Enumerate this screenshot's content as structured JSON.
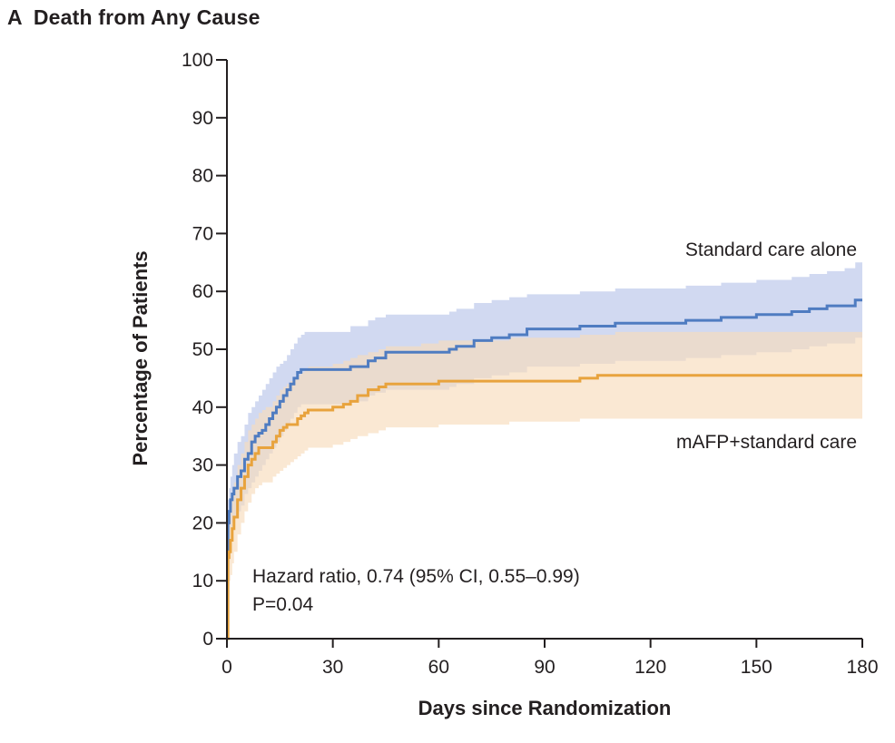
{
  "chart_data": {
    "type": "line",
    "panel_letter": "A",
    "title": "Death from Any Cause",
    "xlabel": "Days since Randomization",
    "ylabel": "Percentage of Patients",
    "xlim": [
      0,
      180
    ],
    "ylim": [
      0,
      100
    ],
    "x_ticks": [
      0,
      30,
      60,
      90,
      120,
      150,
      180
    ],
    "y_ticks": [
      0,
      10,
      20,
      30,
      40,
      50,
      60,
      70,
      80,
      90,
      100
    ],
    "grid": false,
    "annotations": [
      "Hazard ratio, 0.74 (95% CI, 0.55–0.99)",
      "P=0.04"
    ],
    "series": [
      {
        "name": "Standard care alone",
        "color": "#4f7cc1",
        "band_color": "#c6d0ee",
        "step": true,
        "x": [
          0,
          0.3,
          0.6,
          1,
          1.5,
          2,
          3,
          4,
          5,
          6,
          7,
          8,
          9,
          10,
          11,
          12,
          13,
          14,
          15,
          16,
          17,
          18,
          19,
          20,
          21,
          22,
          23,
          24,
          25,
          26,
          30,
          35,
          38,
          40,
          42,
          45,
          50,
          55,
          60,
          63,
          65,
          70,
          75,
          80,
          85,
          90,
          95,
          100,
          105,
          110,
          120,
          130,
          140,
          150,
          155,
          160,
          165,
          170,
          175,
          178,
          180
        ],
        "y": [
          15,
          20,
          22,
          24,
          25,
          26,
          28,
          29,
          31,
          32,
          34,
          35,
          35.5,
          36,
          37,
          38,
          39,
          40,
          41,
          42,
          43,
          44,
          45,
          46,
          46.5,
          46.5,
          46.5,
          46.5,
          46.5,
          46.5,
          46.5,
          47,
          47,
          48,
          48.5,
          49.5,
          49.5,
          49.5,
          49.5,
          50,
          50.5,
          51.5,
          52,
          52.5,
          53.5,
          53.5,
          53.5,
          54,
          54,
          54.5,
          54.5,
          55,
          55.5,
          56,
          56,
          56.5,
          57,
          57.5,
          57.5,
          58.5,
          58.5
        ],
        "upper": [
          20,
          24,
          26,
          28,
          30,
          32,
          34,
          35,
          37,
          39,
          40,
          41,
          42,
          43,
          44,
          45,
          46,
          47,
          47.5,
          48,
          49,
          50,
          51,
          52,
          52.5,
          53,
          53,
          53,
          53,
          53,
          53,
          54,
          54,
          55,
          55.5,
          56,
          56,
          56,
          56,
          56.5,
          57,
          58,
          58.5,
          59,
          59.5,
          59.5,
          59.5,
          60,
          60,
          60.5,
          60.5,
          61,
          61.5,
          62,
          62,
          62.5,
          63,
          63.5,
          64,
          65,
          65
        ],
        "lower": [
          10,
          15,
          17,
          19,
          20,
          21,
          22,
          23,
          25,
          26,
          27,
          28,
          29,
          30,
          31,
          32,
          33,
          34,
          35,
          36,
          37,
          38,
          39,
          40,
          40.5,
          40.5,
          40.5,
          40.5,
          40.5,
          40.5,
          40.5,
          41,
          41,
          42,
          42.5,
          43,
          43,
          43,
          43,
          43.5,
          44,
          45,
          45.5,
          46,
          47,
          47,
          47,
          47.5,
          47.5,
          48,
          48,
          48.5,
          49,
          49.5,
          49.5,
          50,
          50.5,
          51,
          51,
          52,
          52
        ]
      },
      {
        "name": "mAFP+standard care",
        "color": "#e8a33d",
        "band_color": "#f8dcbb",
        "step": true,
        "x": [
          0,
          0.3,
          0.6,
          1,
          1.5,
          2,
          3,
          4,
          5,
          6,
          7,
          8,
          9,
          10,
          11,
          12,
          13,
          14,
          15,
          16,
          17,
          18,
          19,
          20,
          21,
          22,
          23,
          24,
          25,
          28,
          30,
          33,
          35,
          37,
          40,
          43,
          45,
          50,
          55,
          60,
          65,
          70,
          80,
          90,
          100,
          105,
          110,
          120,
          130,
          140,
          150,
          160,
          170,
          180
        ],
        "y": [
          0,
          14,
          15,
          17,
          19,
          21,
          24,
          26,
          28,
          30,
          31,
          32,
          33,
          33,
          33,
          33,
          34,
          35,
          36,
          36.5,
          37,
          37,
          37,
          38,
          38.5,
          39,
          39.5,
          39.5,
          39.5,
          39.5,
          40,
          40.5,
          41,
          42,
          43,
          43.5,
          44,
          44,
          44,
          44.5,
          44.5,
          44.5,
          44.5,
          44.5,
          45,
          45.5,
          45.5,
          45.5,
          45.5,
          45.5,
          45.5,
          45.5,
          45.5,
          45.5
        ],
        "upper": [
          0,
          19,
          21,
          23,
          25,
          27,
          30,
          32,
          34,
          36,
          37,
          38,
          39,
          39.5,
          40,
          40,
          41,
          42,
          43,
          43.5,
          44,
          44.5,
          45,
          45.5,
          46,
          46.5,
          47,
          47,
          47,
          47,
          47.5,
          48,
          48.5,
          49,
          49.5,
          50,
          50.5,
          50.5,
          51,
          51.5,
          51.5,
          51.5,
          52,
          52,
          52.5,
          52.5,
          53,
          53,
          53,
          53,
          53,
          53,
          53,
          53
        ],
        "lower": [
          0,
          9,
          10,
          11,
          13,
          15,
          18,
          20,
          22,
          23.5,
          25,
          26,
          26.5,
          27,
          27,
          27,
          28,
          28.5,
          29,
          29.5,
          30,
          30.5,
          31,
          31.5,
          32,
          32.5,
          33,
          33,
          33,
          33,
          33.5,
          34,
          34.5,
          35,
          35.5,
          36,
          36.5,
          36.5,
          36.5,
          37,
          37,
          37,
          37.5,
          37.5,
          38,
          38,
          38,
          38,
          38,
          38,
          38,
          38,
          38,
          38
        ]
      }
    ]
  }
}
